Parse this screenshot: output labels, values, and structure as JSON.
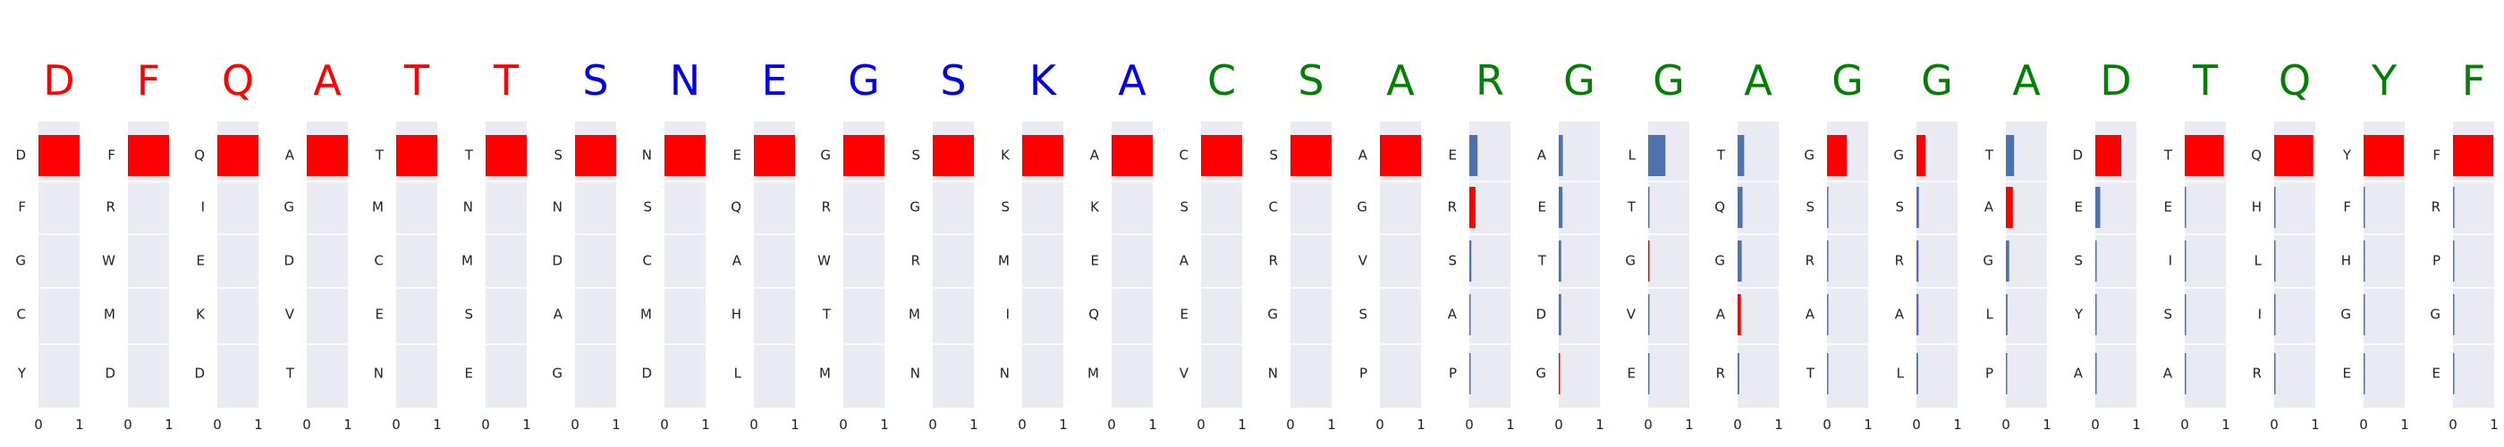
{
  "colors": {
    "panel_bg": "#eaeaf2",
    "grid": "#ffffff",
    "bar_red": "#ff0000",
    "bar_blue": "#4c72b0",
    "token_red": "#ff0000",
    "token_blue": "#0000ee",
    "token_green": "#008000"
  },
  "chart_data": {
    "type": "bar",
    "orientation": "horizontal",
    "xlim": [
      0,
      1
    ],
    "xticks": [
      "0",
      "1"
    ],
    "grid": true,
    "panels": [
      {
        "token": "D",
        "token_color": "red",
        "labels": [
          "D",
          "F",
          "G",
          "C",
          "Y"
        ],
        "values": [
          1,
          0,
          0,
          0,
          0
        ],
        "bar_colors": [
          "red",
          "red",
          "red",
          "red",
          "red"
        ]
      },
      {
        "token": "F",
        "token_color": "red",
        "labels": [
          "F",
          "R",
          "W",
          "M",
          "D"
        ],
        "values": [
          1,
          0,
          0,
          0,
          0
        ],
        "bar_colors": [
          "red",
          "red",
          "red",
          "red",
          "red"
        ]
      },
      {
        "token": "Q",
        "token_color": "red",
        "labels": [
          "Q",
          "I",
          "E",
          "K",
          "D"
        ],
        "values": [
          1,
          0,
          0,
          0,
          0
        ],
        "bar_colors": [
          "red",
          "red",
          "red",
          "red",
          "red"
        ]
      },
      {
        "token": "A",
        "token_color": "red",
        "labels": [
          "A",
          "G",
          "D",
          "V",
          "T"
        ],
        "values": [
          1,
          0,
          0,
          0,
          0
        ],
        "bar_colors": [
          "red",
          "red",
          "red",
          "red",
          "red"
        ]
      },
      {
        "token": "T",
        "token_color": "red",
        "labels": [
          "T",
          "M",
          "C",
          "E",
          "N"
        ],
        "values": [
          1,
          0,
          0,
          0,
          0
        ],
        "bar_colors": [
          "red",
          "red",
          "red",
          "red",
          "red"
        ]
      },
      {
        "token": "T",
        "token_color": "red",
        "labels": [
          "T",
          "N",
          "M",
          "S",
          "E"
        ],
        "values": [
          1,
          0,
          0,
          0,
          0
        ],
        "bar_colors": [
          "red",
          "red",
          "red",
          "red",
          "red"
        ]
      },
      {
        "token": "S",
        "token_color": "blue",
        "labels": [
          "S",
          "N",
          "D",
          "A",
          "G"
        ],
        "values": [
          1,
          0,
          0,
          0,
          0
        ],
        "bar_colors": [
          "red",
          "red",
          "red",
          "red",
          "red"
        ]
      },
      {
        "token": "N",
        "token_color": "blue",
        "labels": [
          "N",
          "S",
          "C",
          "M",
          "D"
        ],
        "values": [
          1,
          0,
          0,
          0,
          0
        ],
        "bar_colors": [
          "red",
          "red",
          "red",
          "red",
          "red"
        ]
      },
      {
        "token": "E",
        "token_color": "blue",
        "labels": [
          "E",
          "Q",
          "A",
          "H",
          "L"
        ],
        "values": [
          1,
          0,
          0,
          0,
          0
        ],
        "bar_colors": [
          "red",
          "red",
          "red",
          "red",
          "red"
        ]
      },
      {
        "token": "G",
        "token_color": "blue",
        "labels": [
          "G",
          "R",
          "W",
          "T",
          "M"
        ],
        "values": [
          1,
          0,
          0,
          0,
          0
        ],
        "bar_colors": [
          "red",
          "red",
          "red",
          "red",
          "red"
        ]
      },
      {
        "token": "S",
        "token_color": "blue",
        "labels": [
          "S",
          "G",
          "R",
          "M",
          "N"
        ],
        "values": [
          1,
          0,
          0,
          0,
          0
        ],
        "bar_colors": [
          "red",
          "red",
          "red",
          "red",
          "red"
        ]
      },
      {
        "token": "K",
        "token_color": "blue",
        "labels": [
          "K",
          "S",
          "M",
          "I",
          "N"
        ],
        "values": [
          1,
          0,
          0,
          0,
          0
        ],
        "bar_colors": [
          "red",
          "red",
          "red",
          "red",
          "red"
        ]
      },
      {
        "token": "A",
        "token_color": "blue",
        "labels": [
          "A",
          "K",
          "E",
          "Q",
          "M"
        ],
        "values": [
          1,
          0,
          0,
          0,
          0
        ],
        "bar_colors": [
          "red",
          "red",
          "red",
          "red",
          "red"
        ]
      },
      {
        "token": "C",
        "token_color": "green",
        "labels": [
          "C",
          "S",
          "A",
          "E",
          "V"
        ],
        "values": [
          1,
          0,
          0,
          0,
          0
        ],
        "bar_colors": [
          "red",
          "red",
          "red",
          "red",
          "red"
        ]
      },
      {
        "token": "S",
        "token_color": "green",
        "labels": [
          "S",
          "C",
          "R",
          "G",
          "N"
        ],
        "values": [
          1,
          0,
          0,
          0,
          0
        ],
        "bar_colors": [
          "red",
          "red",
          "red",
          "red",
          "red"
        ]
      },
      {
        "token": "A",
        "token_color": "green",
        "labels": [
          "A",
          "G",
          "V",
          "S",
          "P"
        ],
        "values": [
          1,
          0,
          0,
          0,
          0
        ],
        "bar_colors": [
          "red",
          "red",
          "red",
          "red",
          "red"
        ]
      },
      {
        "token": "R",
        "token_color": "green",
        "labels": [
          "E",
          "R",
          "S",
          "A",
          "P"
        ],
        "values": [
          0.2,
          0.15,
          0.05,
          0.02,
          0.02
        ],
        "bar_colors": [
          "blue",
          "red",
          "blue",
          "blue",
          "blue"
        ]
      },
      {
        "token": "G",
        "token_color": "green",
        "labels": [
          "A",
          "E",
          "T",
          "D",
          "G"
        ],
        "values": [
          0.1,
          0.09,
          0.06,
          0.06,
          0.03
        ],
        "bar_colors": [
          "blue",
          "blue",
          "blue",
          "blue",
          "red"
        ]
      },
      {
        "token": "G",
        "token_color": "green",
        "labels": [
          "L",
          "T",
          "G",
          "V",
          "E"
        ],
        "values": [
          0.42,
          0.03,
          0.03,
          0.02,
          0.02
        ],
        "bar_colors": [
          "blue",
          "blue",
          "red",
          "blue",
          "blue"
        ]
      },
      {
        "token": "A",
        "token_color": "green",
        "labels": [
          "T",
          "Q",
          "G",
          "A",
          "R"
        ],
        "values": [
          0.16,
          0.12,
          0.1,
          0.08,
          0.04
        ],
        "bar_colors": [
          "blue",
          "blue",
          "blue",
          "red",
          "blue"
        ]
      },
      {
        "token": "G",
        "token_color": "green",
        "labels": [
          "G",
          "S",
          "R",
          "A",
          "T"
        ],
        "values": [
          0.48,
          0.03,
          0.02,
          0.02,
          0.02
        ],
        "bar_colors": [
          "red",
          "blue",
          "blue",
          "blue",
          "blue"
        ]
      },
      {
        "token": "G",
        "token_color": "green",
        "labels": [
          "G",
          "S",
          "R",
          "A",
          "L"
        ],
        "values": [
          0.22,
          0.06,
          0.05,
          0.05,
          0.04
        ],
        "bar_colors": [
          "red",
          "blue",
          "blue",
          "blue",
          "blue"
        ]
      },
      {
        "token": "A",
        "token_color": "green",
        "labels": [
          "T",
          "A",
          "G",
          "L",
          "P"
        ],
        "values": [
          0.2,
          0.17,
          0.08,
          0.04,
          0.02
        ],
        "bar_colors": [
          "blue",
          "red",
          "blue",
          "blue",
          "blue"
        ]
      },
      {
        "token": "D",
        "token_color": "green",
        "labels": [
          "D",
          "E",
          "S",
          "Y",
          "A"
        ],
        "values": [
          0.63,
          0.12,
          0.02,
          0.01,
          0.01
        ],
        "bar_colors": [
          "red",
          "blue",
          "blue",
          "blue",
          "blue"
        ]
      },
      {
        "token": "T",
        "token_color": "green",
        "labels": [
          "T",
          "E",
          "I",
          "S",
          "A"
        ],
        "values": [
          0.95,
          0.02,
          0.01,
          0.01,
          0.01
        ],
        "bar_colors": [
          "red",
          "blue",
          "blue",
          "blue",
          "blue"
        ]
      },
      {
        "token": "Q",
        "token_color": "green",
        "labels": [
          "Q",
          "H",
          "L",
          "I",
          "R"
        ],
        "values": [
          0.95,
          0.01,
          0.01,
          0.01,
          0.01
        ],
        "bar_colors": [
          "red",
          "blue",
          "blue",
          "blue",
          "blue"
        ]
      },
      {
        "token": "Y",
        "token_color": "green",
        "labels": [
          "Y",
          "F",
          "H",
          "G",
          "E"
        ],
        "values": [
          0.98,
          0.01,
          0.01,
          0.01,
          0.01
        ],
        "bar_colors": [
          "red",
          "blue",
          "blue",
          "blue",
          "blue"
        ]
      },
      {
        "token": "F",
        "token_color": "green",
        "labels": [
          "F",
          "R",
          "P",
          "G",
          "E"
        ],
        "values": [
          0.98,
          0.01,
          0.01,
          0.01,
          0.01
        ],
        "bar_colors": [
          "red",
          "blue",
          "blue",
          "blue",
          "blue"
        ]
      }
    ]
  }
}
